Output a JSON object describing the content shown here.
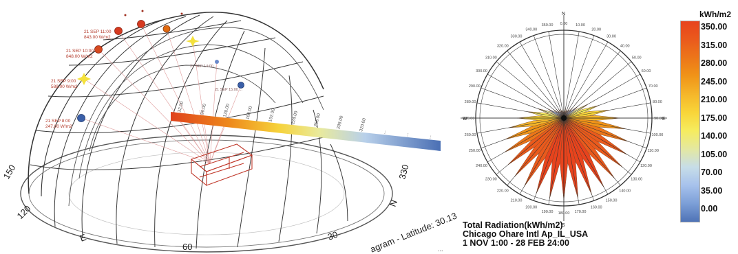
{
  "sun_path": {
    "hour_labels": [
      {
        "text": "21 SEP 11:00\n843.00 W/m2"
      },
      {
        "text": "21 SEP 10:00\n848.00 W/m2"
      },
      {
        "text": "21 SEP 9:00\n588.00 W/m2"
      },
      {
        "text": "21 SEP 8:00\n247.00 W/m2"
      },
      {
        "text": "21 SEP 14:00\n..."
      },
      {
        "text": "21 SEP 15:00\n..."
      }
    ],
    "azimuth_labels": [
      "150",
      "120",
      "E",
      "60",
      "30",
      "N",
      "330"
    ],
    "strip_values": [
      "32.00",
      "96.00",
      "128.00",
      "160.00",
      "192.00",
      "224.00",
      "256.00",
      "288.00",
      "320.00",
      "...",
      "...",
      "..."
    ],
    "bottom_text": "agram - Latitude: 30.13",
    "corner_text": "...",
    "colors": {
      "sun_red": "#d63a20",
      "sun_orange": "#e06a10",
      "sun_yellow": "#f4e13c",
      "sun_blue": "#3a5fa8",
      "grid": "#444444",
      "building": "#c0392b"
    }
  },
  "radiation_rose": {
    "compass": {
      "north": "N",
      "south": "S",
      "east": "E",
      "west": "W"
    },
    "direction_labels": [
      "0.00",
      "10.00",
      "20.00",
      "30.00",
      "40.00",
      "50.00",
      "60.00",
      "70.00",
      "80.00",
      "90.00",
      "100.00",
      "110.00",
      "120.00",
      "130.00",
      "140.00",
      "150.00",
      "160.00",
      "170.00",
      "180.00",
      "190.00",
      "200.00",
      "210.00",
      "220.00",
      "230.00",
      "240.00",
      "250.00",
      "260.00",
      "270.00",
      "280.00",
      "290.00",
      "300.00",
      "310.00",
      "320.00",
      "330.00",
      "340.00",
      "350.00"
    ],
    "radiation_kwh_m2": [
      40,
      42,
      45,
      50,
      60,
      80,
      120,
      160,
      200,
      240,
      270,
      295,
      315,
      330,
      340,
      345,
      350,
      352,
      352,
      350,
      345,
      340,
      330,
      315,
      295,
      270,
      240,
      200,
      160,
      120,
      80,
      60,
      50,
      45,
      42,
      40
    ],
    "max_value": 360
  },
  "legend": {
    "title": "kWh/m2",
    "labels": [
      "350.00",
      "315.00",
      "280.00",
      "245.00",
      "210.00",
      "175.00",
      "140.00",
      "105.00",
      "70.00",
      "35.00",
      "0.00"
    ],
    "colors": [
      "#e8431d",
      "#ea5a1c",
      "#ec7619",
      "#f09418",
      "#f5b62a",
      "#f8d539",
      "#f6ec5e",
      "#e4e8a0",
      "#c7dde8",
      "#a7c2ec",
      "#7c9fd7",
      "#4f73b6"
    ]
  },
  "caption": {
    "line1": "Total Radiation(kWh/m2)",
    "line2": "Chicago Ohare Intl Ap_IL_USA",
    "line3": "1 NOV 1:00 - 28 FEB 24:00"
  }
}
